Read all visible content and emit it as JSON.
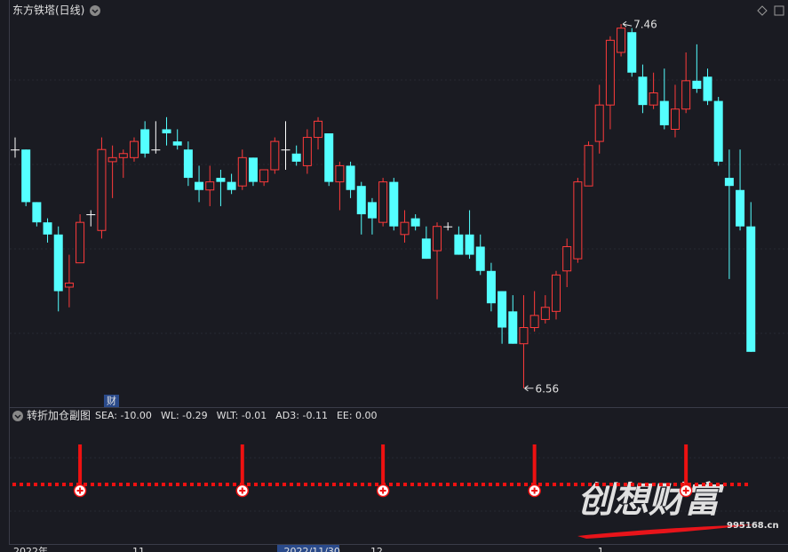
{
  "chart_data": {
    "type": "candlestick",
    "title": "东方铁塔(日线)",
    "categories": [
      "2022年",
      null,
      null,
      null,
      null,
      null,
      null,
      null,
      null,
      null,
      null,
      "11",
      null,
      null,
      null,
      null,
      null,
      null,
      null,
      null,
      null,
      null,
      null,
      null,
      null,
      "2022/11/30",
      null,
      null,
      null,
      null,
      null,
      null,
      null,
      "12",
      null,
      null,
      null,
      null,
      null,
      null,
      null,
      null,
      null,
      null,
      null,
      null,
      null,
      null,
      null,
      null,
      null,
      null,
      null,
      null,
      "1",
      null,
      null,
      null,
      null,
      null,
      null,
      null,
      null,
      null,
      null,
      null,
      null,
      null,
      null
    ],
    "open": [
      7.15,
      7.15,
      7.02,
      6.97,
      6.94,
      6.81,
      6.87,
      6.99,
      6.95,
      7.12,
      7.13,
      7.13,
      7.2,
      7.15,
      7.2,
      7.17,
      7.15,
      7.07,
      7.05,
      7.08,
      7.07,
      7.06,
      7.13,
      7.07,
      7.1,
      7.15,
      7.14,
      7.11,
      7.18,
      7.19,
      7.07,
      7.11,
      7.06,
      7.02,
      6.97,
      7.07,
      6.94,
      6.98,
      6.93,
      6.9,
      6.96,
      6.94,
      6.94,
      6.91,
      6.85,
      6.8,
      6.75,
      6.67,
      6.71,
      6.73,
      6.75,
      6.85,
      6.88,
      7.06,
      7.17,
      7.26,
      7.39,
      7.44,
      7.33,
      7.26,
      7.27,
      7.2,
      7.25,
      7.32,
      7.33,
      7.27,
      7.08,
      7.05,
      6.96
    ],
    "high": [
      7.18,
      7.15,
      7.02,
      6.98,
      6.96,
      6.89,
      6.99,
      7.0,
      7.18,
      7.16,
      7.15,
      7.18,
      7.22,
      7.22,
      7.23,
      7.2,
      7.17,
      7.11,
      7.11,
      7.1,
      7.09,
      7.15,
      7.13,
      7.1,
      7.18,
      7.22,
      7.16,
      7.2,
      7.23,
      7.19,
      7.12,
      7.12,
      7.07,
      7.03,
      7.08,
      7.08,
      7.0,
      6.99,
      6.96,
      6.97,
      6.97,
      6.96,
      7.0,
      6.94,
      6.87,
      6.8,
      6.79,
      6.79,
      6.8,
      6.79,
      6.85,
      6.93,
      7.08,
      7.17,
      7.31,
      7.43,
      7.46,
      7.45,
      7.36,
      7.34,
      7.35,
      7.31,
      7.39,
      7.41,
      7.35,
      7.28,
      7.15,
      7.15,
      7.02
    ],
    "low": [
      7.13,
      7.01,
      6.96,
      6.92,
      6.75,
      6.76,
      6.87,
      6.96,
      6.93,
      7.03,
      7.08,
      7.12,
      7.13,
      7.14,
      7.16,
      7.15,
      7.06,
      7.02,
      7.01,
      7.01,
      7.04,
      7.05,
      7.06,
      7.06,
      7.09,
      7.1,
      7.11,
      7.09,
      7.15,
      7.06,
      7.0,
      7.03,
      6.94,
      6.94,
      6.96,
      6.95,
      6.92,
      6.95,
      6.88,
      6.78,
      6.95,
      6.89,
      6.88,
      6.84,
      6.75,
      6.67,
      6.67,
      6.56,
      6.7,
      6.72,
      6.73,
      6.81,
      6.87,
      7.06,
      7.14,
      7.2,
      7.38,
      7.33,
      7.24,
      7.25,
      7.2,
      7.18,
      7.24,
      7.29,
      7.26,
      7.11,
      6.83,
      6.95,
      6.65
    ],
    "close": [
      7.15,
      7.02,
      6.97,
      6.94,
      6.8,
      6.82,
      6.97,
      6.99,
      7.15,
      7.13,
      7.14,
      7.17,
      7.14,
      7.15,
      7.19,
      7.16,
      7.08,
      7.05,
      7.07,
      7.07,
      7.05,
      7.13,
      7.07,
      7.1,
      7.17,
      7.15,
      7.12,
      7.18,
      7.22,
      7.07,
      7.11,
      7.05,
      6.99,
      6.98,
      7.07,
      6.96,
      6.97,
      6.96,
      6.88,
      6.96,
      6.96,
      6.89,
      6.89,
      6.85,
      6.77,
      6.71,
      6.67,
      6.71,
      6.74,
      6.76,
      6.84,
      6.91,
      7.07,
      7.16,
      7.26,
      7.42,
      7.45,
      7.34,
      7.26,
      7.29,
      7.21,
      7.25,
      7.32,
      7.3,
      7.27,
      7.12,
      7.06,
      6.96,
      6.65
    ],
    "up_color": "#ff3b3b",
    "down_color": "#54ffff",
    "flat_color": "#ffffff",
    "ylim": [
      6.52,
      7.48
    ],
    "marker": "财"
  },
  "indicator": {
    "title": "转折加仓副图",
    "legend": [
      {
        "text": "SEA: -10.00",
        "color": "#ff40ff"
      },
      {
        "text": "WL: -0.29",
        "color": "#ff4040"
      },
      {
        "text": "WLT: -0.01",
        "color": "#ffff40"
      },
      {
        "text": "AD3: -0.11",
        "color": "#30c030"
      },
      {
        "text": "EE: 0.00",
        "color": "#ff4040"
      }
    ],
    "signals": [
      6,
      21,
      34,
      48,
      62
    ],
    "color": "#ee1111"
  },
  "watermark": {
    "text": "创想财富",
    "site": "995168.cn"
  }
}
